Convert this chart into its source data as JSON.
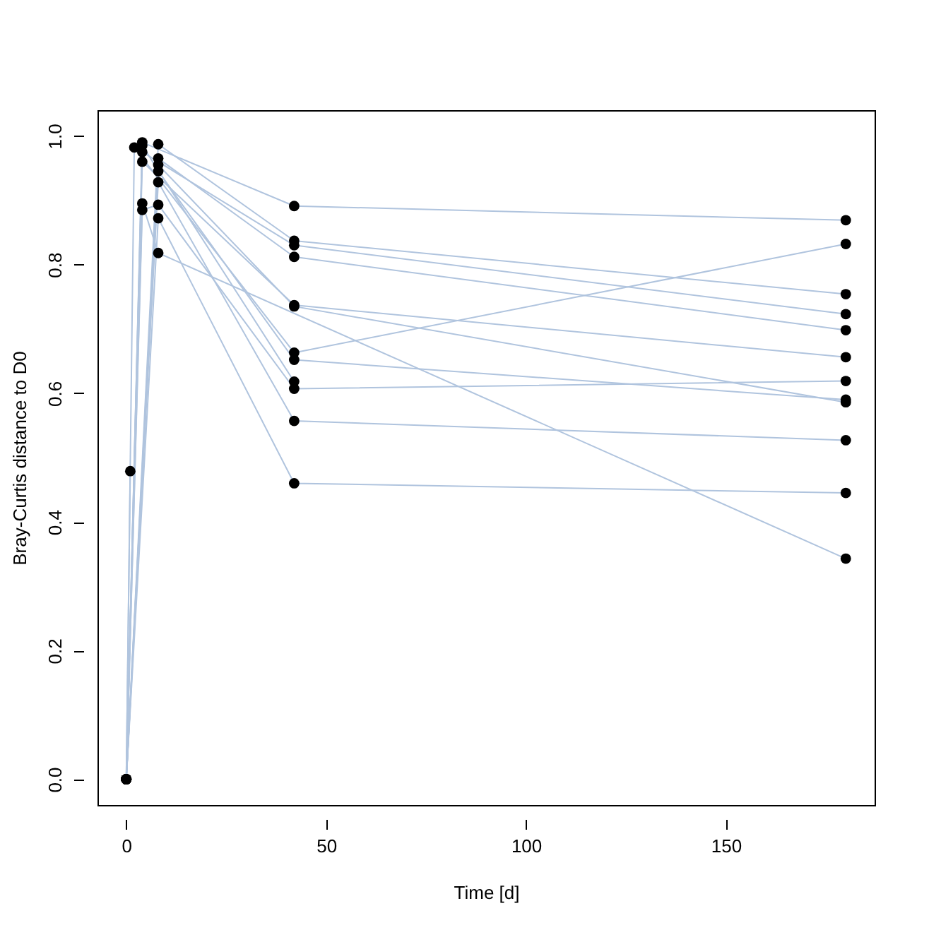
{
  "chart_data": {
    "type": "line",
    "xlabel": "Time [d]",
    "ylabel": "Bray-Curtis distance to D0",
    "xlim": [
      -7.2,
      187.2
    ],
    "xticks": [
      0,
      50,
      100,
      150
    ],
    "ylim": [
      -0.04,
      1.04
    ],
    "yticks": [
      {
        "value": 0,
        "label": "0.0"
      },
      {
        "value": 0.2,
        "label": "0.2"
      },
      {
        "value": 0.4,
        "label": "0.4"
      },
      {
        "value": 0.6,
        "label": "0.6"
      },
      {
        "value": 0.8,
        "label": "0.8"
      },
      {
        "value": 1.0,
        "label": "1.0"
      }
    ],
    "grid": false,
    "legend": false,
    "marker": "circle",
    "line_style": "solid",
    "series": [
      {
        "color": "#b0c4de",
        "x": [
          0,
          4,
          42,
          180
        ],
        "values": [
          0,
          0.99,
          0.891,
          0.869
        ]
      },
      {
        "color": "#b0c4de",
        "x": [
          0,
          8,
          42,
          180
        ],
        "values": [
          0,
          0.987,
          0.837,
          0.754
        ]
      },
      {
        "color": "#b0c4de",
        "x": [
          0,
          4,
          42,
          180
        ],
        "values": [
          0,
          0.975,
          0.83,
          0.723
        ]
      },
      {
        "color": "#b0c4de",
        "x": [
          0,
          8,
          42,
          180
        ],
        "values": [
          0,
          0.965,
          0.812,
          0.698
        ]
      },
      {
        "color": "#b0c4de",
        "x": [
          0,
          4,
          42,
          180
        ],
        "values": [
          0,
          0.96,
          0.737,
          0.656
        ]
      },
      {
        "color": "#b0c4de",
        "x": [
          0,
          8,
          42,
          180
        ],
        "values": [
          0,
          0.955,
          0.735,
          0.586
        ]
      },
      {
        "color": "#b0c4de",
        "x": [
          0,
          2,
          42,
          180
        ],
        "values": [
          0,
          0.982,
          0.663,
          0.832
        ]
      },
      {
        "color": "#b0c4de",
        "x": [
          0,
          8,
          42,
          180
        ],
        "values": [
          0,
          0.945,
          0.652,
          0.59
        ]
      },
      {
        "color": "#b0c4de",
        "x": [
          0,
          4,
          8,
          42,
          180
        ],
        "values": [
          0,
          0.885,
          0.893,
          0.607,
          0.619
        ]
      },
      {
        "color": "#b0c4de",
        "x": [
          0,
          4,
          42
        ],
        "values": [
          0,
          0.985,
          0.618
        ]
      },
      {
        "color": "#b0c4de",
        "x": [
          0,
          8,
          42,
          180
        ],
        "values": [
          0,
          0.928,
          0.557,
          0.527
        ]
      },
      {
        "color": "#b0c4de",
        "x": [
          0,
          8,
          42,
          180
        ],
        "values": [
          0,
          0.872,
          0.46,
          0.445
        ]
      },
      {
        "color": "#b0c4de",
        "x": [
          0,
          4,
          8,
          180
        ],
        "values": [
          0,
          0.895,
          0.818,
          0.343
        ]
      },
      {
        "color": "#b0c4de",
        "x": [
          0,
          1
        ],
        "values": [
          0,
          0.479
        ]
      }
    ]
  }
}
